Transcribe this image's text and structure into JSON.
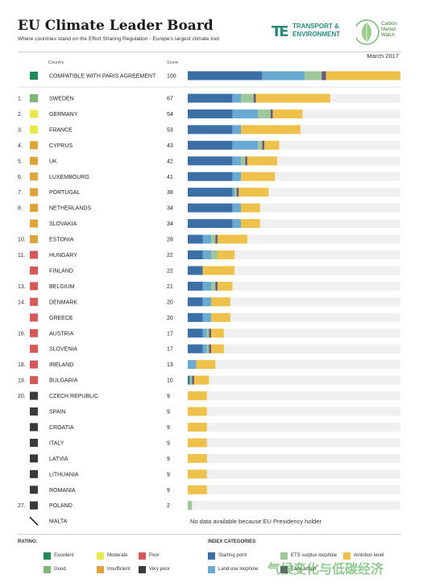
{
  "header": {
    "title": "EU Climate Leader Board",
    "subtitle": "Where countries stand on the Effort Sharing Regulation - Europe's largest climate tool",
    "date": "March 2017",
    "logo_te": "TRANSPORT & ENVIRONMENT",
    "logo_te_line1": "TRANSPORT &",
    "logo_te_line2": "ENVIRONMENT",
    "logo_cmw_line1": "Carbon",
    "logo_cmw_line2": "Market",
    "logo_cmw_line3": "Watch"
  },
  "columns": {
    "country": "Country",
    "score": "Score"
  },
  "colors": {
    "excellent": "#1f8a5a",
    "good": "#7db87a",
    "moderate": "#e8e84a",
    "insufficient": "#e0a23a",
    "poor": "#d45a5a",
    "very_poor": "#3a3a3a",
    "starting_point": "#3b6fa6",
    "land_use_loophole": "#6aaad2",
    "ets_surplus_loophole": "#9fc89a",
    "early_action": "#6a5a7a",
    "ambition_level": "#eec24a",
    "track": "#f0f0f0"
  },
  "chart_data": {
    "type": "bar",
    "title": "EU Climate Leader Board",
    "subtitle": "Where countries stand on the Effort Sharing Regulation - Europe's largest climate tool",
    "xlim": [
      0,
      100
    ],
    "stack_order": [
      "starting_point",
      "land_use_loophole",
      "ets_surplus_loophole",
      "early_action",
      "ambition_level"
    ],
    "rows": [
      {
        "rank": "",
        "country": "COMPATIBLE WITH PARIS AGREEMENT",
        "rating": "excellent",
        "score": 100,
        "seg": [
          35,
          20,
          8,
          2,
          35
        ]
      },
      {
        "rank": "1.",
        "country": "SWEDEN",
        "rating": "good",
        "score": 67,
        "seg": [
          21,
          4,
          6,
          1,
          35
        ]
      },
      {
        "rank": "2.",
        "country": "GERMANY",
        "rating": "moderate",
        "score": 54,
        "seg": [
          21,
          12,
          6,
          1,
          14
        ]
      },
      {
        "rank": "3.",
        "country": "FRANCE",
        "rating": "moderate",
        "score": 53,
        "seg": [
          21,
          4,
          0,
          0,
          28
        ]
      },
      {
        "rank": "4.",
        "country": "CYPRUS",
        "rating": "insufficient",
        "score": 43,
        "seg": [
          21,
          12,
          2,
          1,
          7
        ]
      },
      {
        "rank": "5.",
        "country": "UK",
        "rating": "insufficient",
        "score": 42,
        "seg": [
          21,
          4,
          2,
          1,
          14
        ]
      },
      {
        "rank": "6.",
        "country": "LUXEMBOURG",
        "rating": "insufficient",
        "score": 41,
        "seg": [
          21,
          4,
          0,
          0,
          16
        ]
      },
      {
        "rank": "7.",
        "country": "PORTUGAL",
        "rating": "insufficient",
        "score": 38,
        "seg": [
          21,
          1,
          1,
          1,
          14
        ]
      },
      {
        "rank": "8.",
        "country": "NETHERLANDS",
        "rating": "insufficient",
        "score": 34,
        "seg": [
          21,
          4,
          0,
          0,
          9
        ]
      },
      {
        "rank": "",
        "country": "SLOVAKIA",
        "rating": "insufficient",
        "score": 34,
        "seg": [
          21,
          4,
          0,
          0,
          9
        ]
      },
      {
        "rank": "10.",
        "country": "ESTONIA",
        "rating": "insufficient",
        "score": 28,
        "seg": [
          7,
          4,
          2,
          1,
          14
        ]
      },
      {
        "rank": "11.",
        "country": "HUNGARY",
        "rating": "poor",
        "score": 22,
        "seg": [
          7,
          4,
          3,
          0,
          8
        ]
      },
      {
        "rank": "",
        "country": "FINLAND",
        "rating": "poor",
        "score": 22,
        "seg": [
          7,
          0,
          0,
          0,
          15
        ]
      },
      {
        "rank": "13.",
        "country": "BELGIUM",
        "rating": "poor",
        "score": 21,
        "seg": [
          7,
          4,
          2,
          1,
          7
        ]
      },
      {
        "rank": "14.",
        "country": "DENMARK",
        "rating": "poor",
        "score": 20,
        "seg": [
          7,
          4,
          0,
          0,
          9
        ]
      },
      {
        "rank": "",
        "country": "GREECE",
        "rating": "poor",
        "score": 20,
        "seg": [
          7,
          4,
          0,
          0,
          9
        ]
      },
      {
        "rank": "16.",
        "country": "AUSTRIA",
        "rating": "poor",
        "score": 17,
        "seg": [
          7,
          2,
          1,
          1,
          6
        ]
      },
      {
        "rank": "",
        "country": "SLOVENIA",
        "rating": "poor",
        "score": 17,
        "seg": [
          7,
          2,
          1,
          1,
          6
        ]
      },
      {
        "rank": "18.",
        "country": "IRELAND",
        "rating": "poor",
        "score": 13,
        "seg": [
          0,
          4,
          0,
          0,
          9
        ]
      },
      {
        "rank": "19.",
        "country": "BULGARIA",
        "rating": "poor",
        "score": 10,
        "seg": [
          1,
          0,
          1,
          1,
          7
        ]
      },
      {
        "rank": "20.",
        "country": "CZECH REPUBLIC",
        "rating": "very_poor",
        "score": 9,
        "seg": [
          0,
          0,
          0,
          0,
          9
        ]
      },
      {
        "rank": "",
        "country": "SPAIN",
        "rating": "very_poor",
        "score": 9,
        "seg": [
          0,
          0,
          0,
          0,
          9
        ]
      },
      {
        "rank": "",
        "country": "CROATIA",
        "rating": "very_poor",
        "score": 9,
        "seg": [
          0,
          0,
          0,
          0,
          9
        ]
      },
      {
        "rank": "",
        "country": "ITALY",
        "rating": "very_poor",
        "score": 9,
        "seg": [
          0,
          0,
          0,
          0,
          9
        ]
      },
      {
        "rank": "",
        "country": "LATVIA",
        "rating": "very_poor",
        "score": 9,
        "seg": [
          0,
          0,
          0,
          0,
          9
        ]
      },
      {
        "rank": "",
        "country": "LITHUANIA",
        "rating": "very_poor",
        "score": 9,
        "seg": [
          0,
          0,
          0,
          0,
          9
        ]
      },
      {
        "rank": "",
        "country": "ROMANIA",
        "rating": "very_poor",
        "score": 9,
        "seg": [
          0,
          0,
          0,
          0,
          9
        ]
      },
      {
        "rank": "27.",
        "country": "POLAND",
        "rating": "very_poor",
        "score": 2,
        "seg": [
          0,
          0,
          2,
          0,
          0
        ]
      },
      {
        "rank": "",
        "country": "MALTA",
        "rating": "none",
        "score": null,
        "seg": []
      }
    ],
    "no_data_note": "No data available because EU Presidency holder"
  },
  "legend": {
    "rating_title": "RATING:",
    "ratings": [
      {
        "key": "excellent",
        "label": "Excellent"
      },
      {
        "key": "moderate",
        "label": "Moderate"
      },
      {
        "key": "poor",
        "label": "Poor"
      },
      {
        "key": "good",
        "label": "Good"
      },
      {
        "key": "insufficient",
        "label": "Insufficient"
      },
      {
        "key": "very_poor",
        "label": "Very poor"
      }
    ],
    "index_title": "INDEX CATEGORIES",
    "categories": [
      {
        "key": "starting_point",
        "label": "Starting point"
      },
      {
        "key": "ets_surplus_loophole",
        "label": "ETS surplus loophole"
      },
      {
        "key": "ambition_level",
        "label": "Ambition level"
      },
      {
        "key": "land_use_loophole",
        "label": "Land use loophole"
      },
      {
        "key": "early_action",
        "label": "Early action"
      }
    ]
  },
  "watermark": "气候变化与低碳经济"
}
